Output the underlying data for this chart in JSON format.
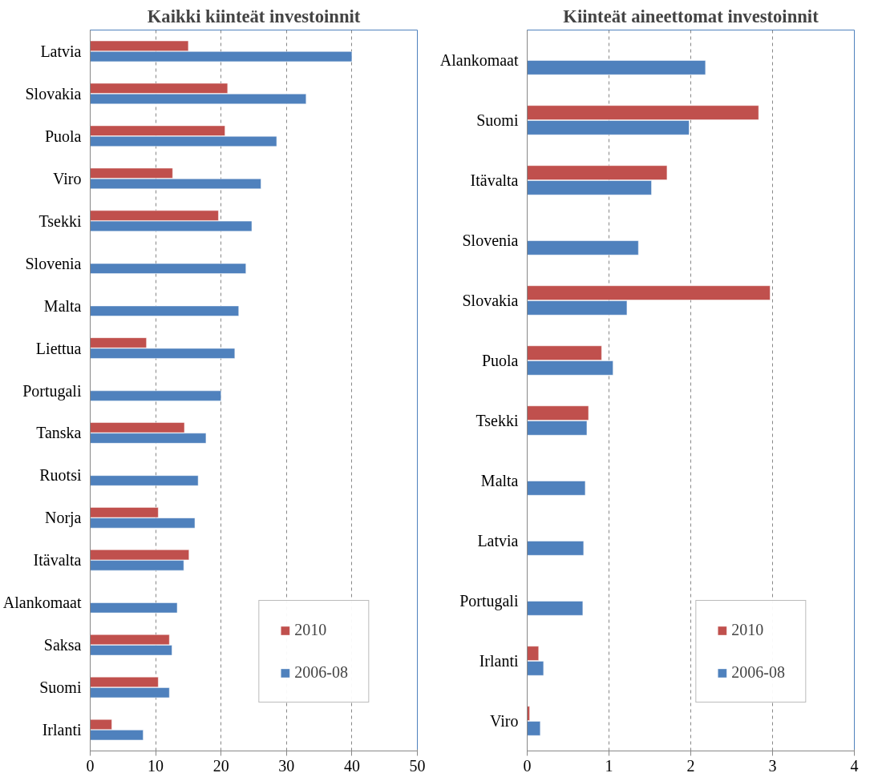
{
  "chart_data": [
    {
      "type": "bar",
      "orientation": "horizontal",
      "title": "Kaikki kiinteät investoinnit",
      "categories": [
        "Latvia",
        "Slovakia",
        "Puola",
        "Viro",
        "Tsekki",
        "Slovenia",
        "Malta",
        "Liettua",
        "Portugali",
        "Tanska",
        "Ruotsi",
        "Norja",
        "Itävalta",
        "Alankomaat",
        "Saksa",
        "Suomi",
        "Irlanti"
      ],
      "series": [
        {
          "name": "2010",
          "color": "#c0504d",
          "values": [
            15.0,
            21.0,
            20.6,
            12.6,
            19.6,
            null,
            null,
            8.6,
            null,
            14.4,
            null,
            10.4,
            15.1,
            null,
            12.1,
            10.4,
            3.3
          ]
        },
        {
          "name": "2006-08",
          "color": "#4f81bd",
          "values": [
            40.0,
            33.0,
            28.5,
            26.1,
            24.7,
            23.8,
            22.7,
            22.1,
            20.0,
            17.7,
            16.5,
            16.0,
            14.3,
            13.3,
            12.5,
            12.1,
            8.1
          ]
        }
      ],
      "xlim": [
        0,
        50
      ],
      "xticks": [
        0,
        10,
        20,
        30,
        40,
        50
      ],
      "grid": "x",
      "legend": "bottom right"
    },
    {
      "type": "bar",
      "orientation": "horizontal",
      "title": "Kiinteät aineettomat investoinnit",
      "categories": [
        "Alankomaat",
        "Suomi",
        "Itävalta",
        "Slovenia",
        "Slovakia",
        "Puola",
        "Tsekki",
        "Malta",
        "Latvia",
        "Portugali",
        "Irlanti",
        "Viro"
      ],
      "series": [
        {
          "name": "2010",
          "color": "#c0504d",
          "values": [
            null,
            2.83,
            1.71,
            null,
            2.97,
            0.91,
            0.75,
            null,
            null,
            null,
            0.14,
            0.03
          ]
        },
        {
          "name": "2006-08",
          "color": "#4f81bd",
          "values": [
            2.18,
            1.98,
            1.52,
            1.36,
            1.22,
            1.05,
            0.73,
            0.71,
            0.69,
            0.68,
            0.2,
            0.16
          ]
        }
      ],
      "xlim": [
        0,
        4
      ],
      "xticks": [
        0,
        1,
        2,
        3,
        4
      ],
      "grid": "x",
      "legend": "bottom right"
    }
  ]
}
